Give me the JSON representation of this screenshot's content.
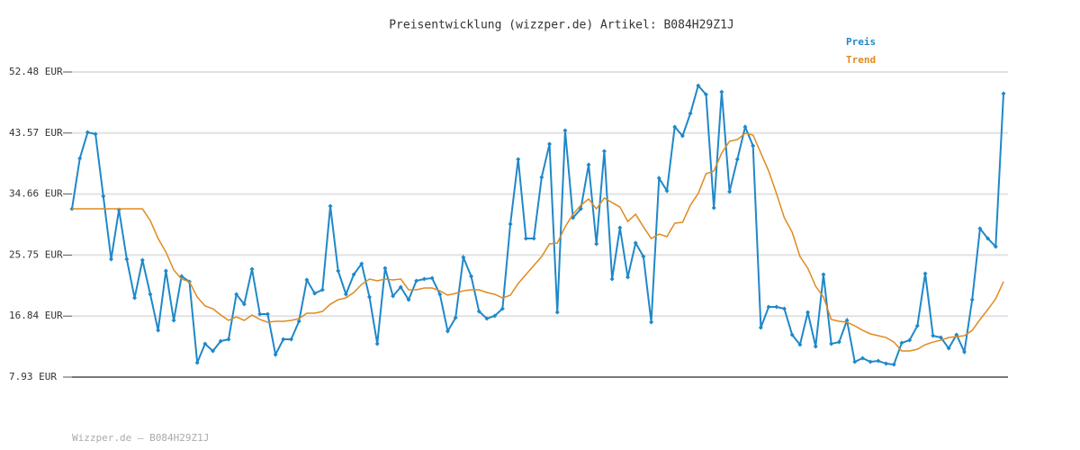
{
  "chart_data": {
    "type": "line",
    "title": "Preisentwicklung (wizzper.de) Artikel: B084H29Z1J",
    "footer": "Wizzper.de – B084H29Z1J",
    "ylim": [
      7.93,
      52.48
    ],
    "yticks": [
      {
        "value": 7.93,
        "label": "7.93 EUR"
      },
      {
        "value": 16.84,
        "label": "16.84 EUR"
      },
      {
        "value": 25.75,
        "label": "25.75 EUR"
      },
      {
        "value": 34.66,
        "label": "34.66 EUR"
      },
      {
        "value": 43.57,
        "label": "43.57 EUR"
      },
      {
        "value": 52.48,
        "label": "52.48 EUR"
      }
    ],
    "grid": true,
    "series": [
      {
        "name": "Preis",
        "color": "#1f88c9",
        "markers": true,
        "values": [
          32.5,
          39.86,
          43.67,
          43.41,
          34.34,
          25.14,
          32.37,
          25.14,
          19.49,
          25.01,
          20.02,
          14.76,
          23.44,
          16.21,
          22.65,
          21.86,
          10.03,
          12.79,
          11.74,
          13.19,
          13.45,
          20.02,
          18.57,
          23.7,
          17.13,
          17.13,
          11.22,
          13.45,
          13.45,
          16.08,
          22.12,
          20.15,
          20.68,
          32.9,
          23.44,
          20.02,
          22.91,
          24.49,
          19.62,
          12.79,
          23.83,
          19.76,
          21.07,
          19.23,
          21.99,
          22.25,
          22.38,
          20.02,
          14.63,
          16.6,
          25.41,
          22.65,
          17.52,
          16.47,
          16.87,
          17.92,
          30.27,
          39.73,
          28.17,
          28.17,
          37.1,
          41.96,
          17.39,
          43.93,
          31.19,
          32.5,
          38.94,
          27.38,
          40.91,
          22.25,
          29.74,
          22.52,
          27.51,
          25.54,
          15.95,
          36.97,
          35.13,
          44.46,
          43.15,
          46.43,
          50.5,
          49.19,
          32.63,
          49.58,
          35.0,
          39.73,
          44.46,
          41.7,
          15.16,
          18.18,
          18.18,
          17.92,
          14.11,
          12.66,
          17.39,
          12.4,
          22.91,
          12.79,
          13.05,
          16.21,
          10.16,
          10.69,
          10.16,
          10.3,
          9.9,
          9.77,
          12.92,
          13.32,
          15.42,
          23.04,
          13.97,
          13.71,
          12.13,
          14.11,
          11.61,
          19.23,
          29.61,
          28.17,
          26.98,
          49.32
        ]
      },
      {
        "name": "Trend",
        "color": "#e08a1e",
        "markers": false,
        "values": [
          32.5,
          32.5,
          32.5,
          32.5,
          32.5,
          32.5,
          32.5,
          32.5,
          32.5,
          32.5,
          30.79,
          28.17,
          26.19,
          23.57,
          22.25,
          21.86,
          19.62,
          18.31,
          17.92,
          17.0,
          16.21,
          16.73,
          16.21,
          17.0,
          16.34,
          15.95,
          16.08,
          16.08,
          16.21,
          16.47,
          17.26,
          17.26,
          17.52,
          18.57,
          19.23,
          19.49,
          20.28,
          21.46,
          22.25,
          21.99,
          22.25,
          22.12,
          22.25,
          20.68,
          20.68,
          20.94,
          20.94,
          20.54,
          19.89,
          20.15,
          20.54,
          20.68,
          20.68,
          20.28,
          20.02,
          19.49,
          19.89,
          21.6,
          22.91,
          24.22,
          25.54,
          27.38,
          27.51,
          29.87,
          31.71,
          33.03,
          33.95,
          32.5,
          34.08,
          33.42,
          32.76,
          30.66,
          31.71,
          29.87,
          28.17,
          28.82,
          28.43,
          30.4,
          30.53,
          33.03,
          34.74,
          37.63,
          38.02,
          40.65,
          42.36,
          42.62,
          43.54,
          43.28,
          40.65,
          38.02,
          34.74,
          31.19,
          29.09,
          25.54,
          23.83,
          21.2,
          19.62,
          16.34,
          16.08,
          15.95,
          15.42,
          14.76,
          14.24,
          13.97,
          13.71,
          13.05,
          11.74,
          11.74,
          12.0,
          12.66,
          13.05,
          13.32,
          13.71,
          13.84,
          13.97,
          14.76,
          16.34,
          17.79,
          19.36,
          21.86
        ]
      }
    ]
  }
}
